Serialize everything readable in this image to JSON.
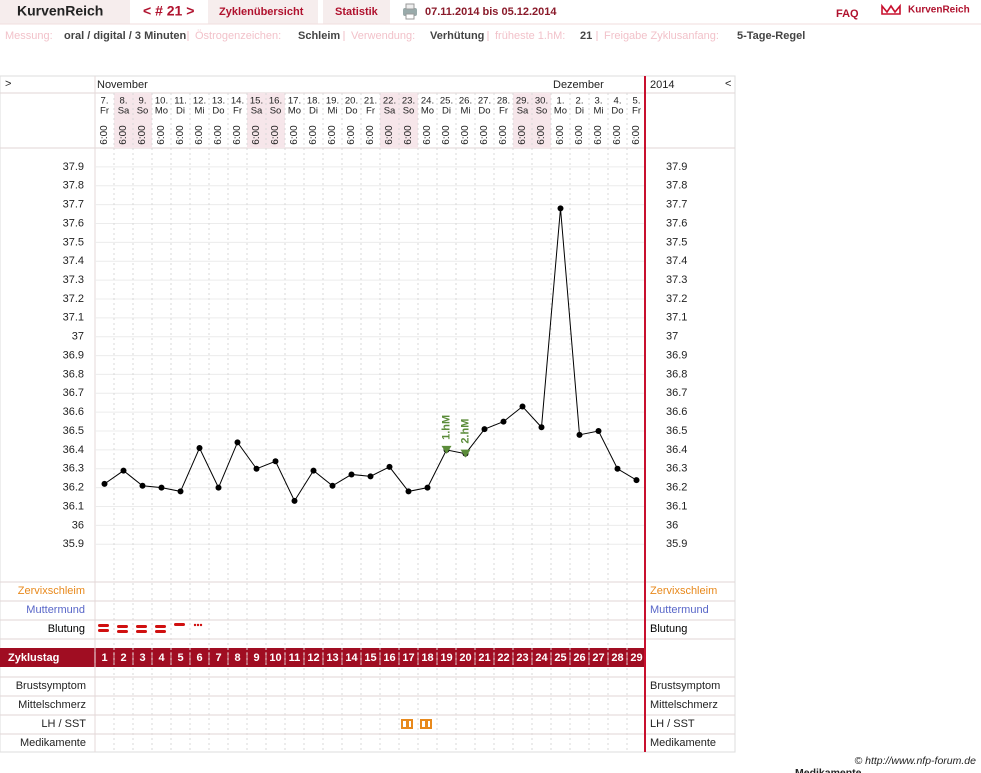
{
  "header": {
    "brand": "KurvenReich",
    "cycle_nav": "< # 21 >",
    "tabs": [
      "Zyklenübersicht",
      "Statistik"
    ],
    "date_range": "07.11.2014 bis 05.12.2014",
    "faq": "FAQ",
    "logo": "KurvenReich"
  },
  "info": [
    {
      "label": "Messung:",
      "value": "oral / digital / 3 Minuten"
    },
    {
      "label": "Östrogenzeichen:",
      "value": "Schleim"
    },
    {
      "label": "Verwendung:",
      "value": "Verhütung"
    },
    {
      "label": "früheste 1.hM:",
      "value": "21"
    },
    {
      "label": "Freigabe Zyklusanfang:",
      "value": "5-Tage-Regel"
    }
  ],
  "calendar": {
    "left_arrow": ">",
    "right_arrow": "<",
    "months": [
      "November",
      "Dezember"
    ],
    "year": "2014",
    "days": [
      "7.",
      "8.",
      "9.",
      "10.",
      "11.",
      "12.",
      "13.",
      "14.",
      "15.",
      "16.",
      "17.",
      "18.",
      "19.",
      "20.",
      "21.",
      "22.",
      "23.",
      "24.",
      "25.",
      "26.",
      "27.",
      "28.",
      "29.",
      "30.",
      "1.",
      "2.",
      "3.",
      "4.",
      "5."
    ],
    "weekdays": [
      "Fr",
      "Sa",
      "So",
      "Mo",
      "Di",
      "Mi",
      "Do",
      "Fr",
      "Sa",
      "So",
      "Mo",
      "Di",
      "Mi",
      "Do",
      "Fr",
      "Sa",
      "So",
      "Mo",
      "Di",
      "Mi",
      "Do",
      "Fr",
      "Sa",
      "So",
      "Mo",
      "Di",
      "Mi",
      "Do",
      "Fr"
    ],
    "times": [
      "6:00",
      "6:00",
      "6:00",
      "6:00",
      "6:00",
      "6:00",
      "6:00",
      "6:00",
      "6:00",
      "6:00",
      "6:00",
      "6:00",
      "6:00",
      "6:00",
      "6:00",
      "6:00",
      "6:00",
      "6:00",
      "6:00",
      "6:00",
      "6:00",
      "6:00",
      "6:00",
      "6:00",
      "6:00",
      "6:00",
      "6:00",
      "6:00",
      "6:00"
    ]
  },
  "chart_data": {
    "type": "line",
    "color": "#000000",
    "values": [
      36.22,
      36.29,
      36.21,
      36.2,
      36.18,
      36.41,
      36.2,
      36.44,
      36.3,
      36.34,
      36.13,
      36.29,
      36.21,
      36.27,
      36.26,
      36.31,
      36.18,
      36.2,
      36.4,
      36.38,
      36.51,
      36.55,
      36.63,
      36.52,
      37.68,
      36.48,
      36.5,
      36.3,
      36.24
    ],
    "ylim": [
      35.7,
      38.0
    ],
    "yticks": [
      35.9,
      36,
      36.1,
      36.2,
      36.3,
      36.4,
      36.5,
      36.6,
      36.7,
      36.8,
      36.9,
      37,
      37.1,
      37.2,
      37.3,
      37.4,
      37.5,
      37.6,
      37.7,
      37.8,
      37.9
    ],
    "grid": true,
    "annotations": [
      {
        "text": "1.hM",
        "day": 19,
        "color": "#5b8c3a"
      },
      {
        "text": "2.hM",
        "day": 20,
        "color": "#5b8c3a"
      }
    ]
  },
  "rows_top": [
    {
      "label": "Zervixschleim",
      "color": "#e8891c"
    },
    {
      "label": "Muttermund",
      "color": "#5866c8"
    },
    {
      "label": "Blutung",
      "color": "#000000"
    }
  ],
  "cycle_day": {
    "label": "Zyklustag",
    "days": [
      1,
      2,
      3,
      4,
      5,
      6,
      7,
      8,
      9,
      10,
      11,
      12,
      13,
      14,
      15,
      16,
      17,
      18,
      19,
      20,
      21,
      22,
      23,
      24,
      25,
      26,
      27,
      28,
      29
    ]
  },
  "rows_bottom": [
    "Brustsymptom",
    "Mittelschmerz",
    "LH / SST",
    "Medikamente"
  ],
  "footer": {
    "copyright": "© http://www.nfp-forum.de",
    "cutoff": "Medikamente"
  }
}
